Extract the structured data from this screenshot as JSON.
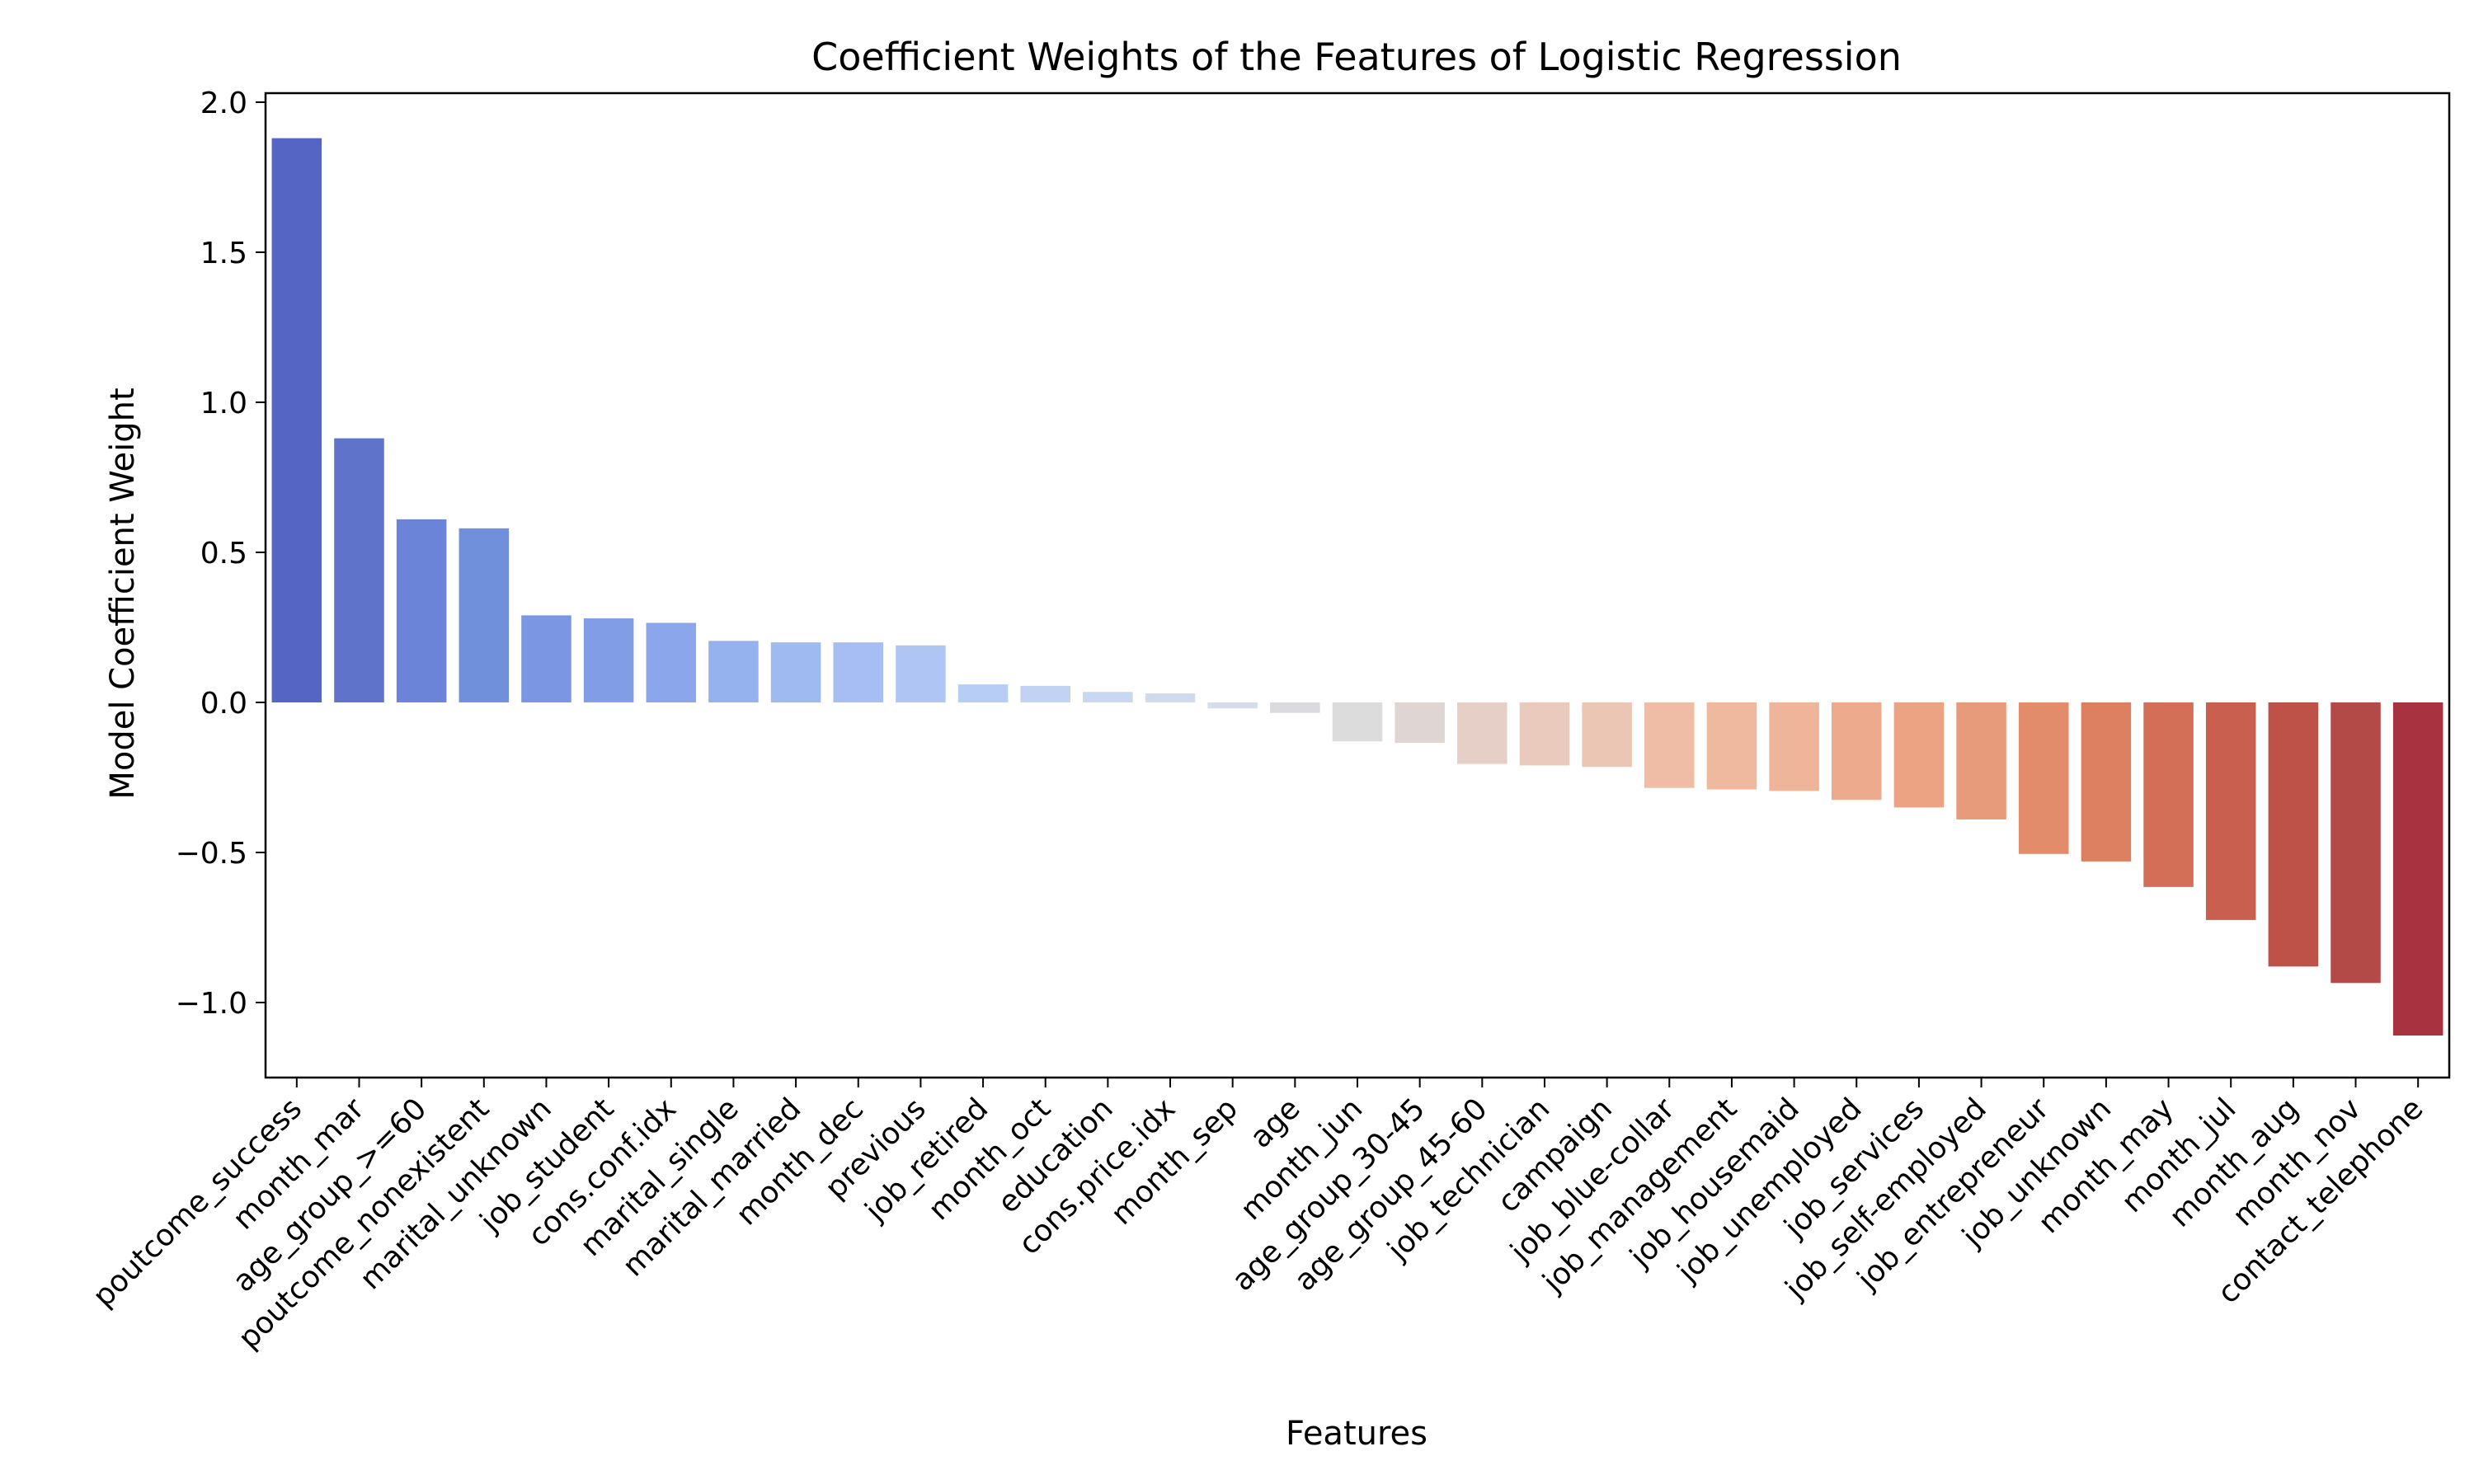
{
  "chart_data": {
    "type": "bar",
    "title": "Coefficient Weights of the Features of Logistic Regression",
    "xlabel": "Features",
    "ylabel": "Model Coefficient Weight",
    "ylim": [
      -1.25,
      2.03
    ],
    "yticks": [
      -1.0,
      -0.5,
      0.0,
      0.5,
      1.0,
      1.5,
      2.0
    ],
    "ytick_labels": [
      "−1.0",
      "−0.5",
      "0.0",
      "0.5",
      "1.0",
      "1.5",
      "2.0"
    ],
    "grid": false,
    "legend": "none",
    "colormap": "coolwarm",
    "categories": [
      "poutcome_success",
      "month_mar",
      "age_group_>=60",
      "poutcome_nonexistent",
      "marital_unknown",
      "job_student",
      "cons.conf.idx",
      "marital_single",
      "marital_married",
      "month_dec",
      "previous",
      "job_retired",
      "month_oct",
      "education",
      "cons.price.idx",
      "month_sep",
      "age",
      "month_jun",
      "age_group_30-45",
      "age_group_45-60",
      "job_technician",
      "campaign",
      "job_blue-collar",
      "job_management",
      "job_housemaid",
      "job_unemployed",
      "job_services",
      "job_self-employed",
      "job_entrepreneur",
      "job_unknown",
      "month_may",
      "month_jul",
      "month_aug",
      "month_nov",
      "contact_telephone"
    ],
    "values": [
      1.88,
      0.88,
      0.61,
      0.58,
      0.29,
      0.28,
      0.265,
      0.205,
      0.2,
      0.2,
      0.19,
      0.06,
      0.055,
      0.035,
      0.03,
      -0.02,
      -0.035,
      -0.13,
      -0.135,
      -0.205,
      -0.21,
      -0.215,
      -0.285,
      -0.29,
      -0.295,
      -0.325,
      -0.35,
      -0.39,
      -0.505,
      -0.53,
      -0.615,
      -0.725,
      -0.88,
      -0.935,
      -1.11
    ],
    "colors": [
      "#5565c3",
      "#6073cb",
      "#6b84d8",
      "#7090dc",
      "#7b96e2",
      "#819de6",
      "#8ba6ea",
      "#95b1ee",
      "#9fb9f1",
      "#a6bef3",
      "#afc6f5",
      "#b8cdf6",
      "#c1d2f5",
      "#c9d7f2",
      "#d1dbee",
      "#d6dce8",
      "#dbdbdf",
      "#dddcdc",
      "#dfd6d4",
      "#e6cfc6",
      "#e9cabd",
      "#ecc6b5",
      "#efbda6",
      "#efb9a0",
      "#efb59b",
      "#eeaa8c",
      "#eba384",
      "#e89b7a",
      "#e38c6c",
      "#dd7f61",
      "#d36f57",
      "#c9604f",
      "#be5249",
      "#b44a48",
      "#a83240"
    ]
  }
}
